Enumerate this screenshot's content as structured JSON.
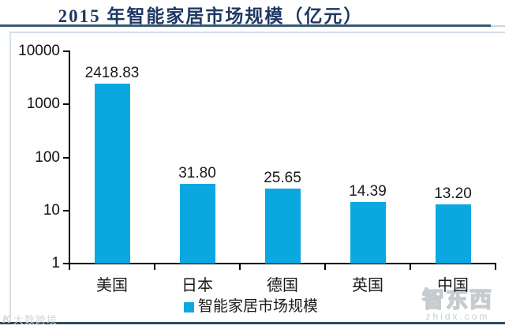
{
  "header": {
    "title": "2015 年智能家居市场规模（亿元）"
  },
  "chart_data": {
    "type": "bar",
    "title": "2015 年智能家居市场规模（亿元）",
    "scale": "log10",
    "categories": [
      "美国",
      "日本",
      "德国",
      "英国",
      "中国"
    ],
    "values": [
      2418.83,
      31.8,
      25.65,
      14.39,
      13.2
    ],
    "value_labels": [
      "2418.83",
      "31.80",
      "25.65",
      "14.39",
      "13.20"
    ],
    "ylim": [
      1,
      10000
    ],
    "ytick_labels": [
      "10000",
      "1000",
      "100",
      "10",
      "1"
    ],
    "yticks": [
      10000,
      1000,
      100,
      10,
      1
    ],
    "grid": false,
    "legend_position": "bottom",
    "legend": [
      "智能家居市场规模"
    ],
    "bar_color": "#0AA8E1"
  },
  "legend": {
    "label": "智能家居市场规模"
  },
  "colors": {
    "bar": "#0AA8E1",
    "title": "#1F3864",
    "title_underline": "#3A5970",
    "bottom_line": "#2A4A63",
    "axis": "#000000",
    "frame": "#D4DEE8",
    "watermark": "#C9CDD1"
  },
  "watermarks": {
    "bottom_right_cn": "智东西",
    "bottom_right_url": "zhidx.com",
    "bottom_left_logo": "K",
    "bottom_left_text": "大数跨境"
  }
}
